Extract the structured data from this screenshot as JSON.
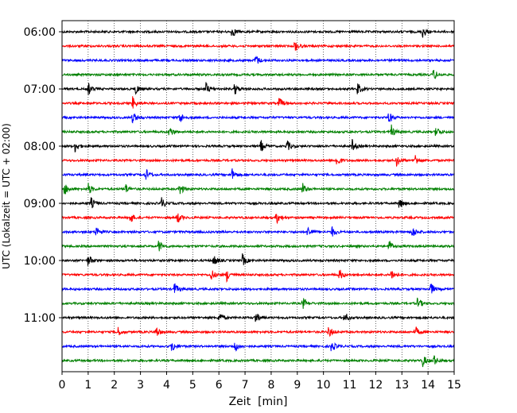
{
  "chart_data": {
    "type": "line",
    "title": "",
    "xlabel": "Zeit  [min]",
    "ylabel": "UTC (Lokalzeit = UTC + 02:00)",
    "xlim": [
      0,
      15
    ],
    "x_ticks": [
      "0",
      "1",
      "2",
      "3",
      "4",
      "5",
      "6",
      "7",
      "8",
      "9",
      "10",
      "11",
      "12",
      "13",
      "14",
      "15"
    ],
    "y_tick_labels": [
      "06:00",
      "07:00",
      "08:00",
      "09:00",
      "10:00",
      "11:00"
    ],
    "y_tick_rows": [
      0,
      4,
      8,
      12,
      16,
      20
    ],
    "grid": "vertical dotted",
    "trace_colors": [
      "#000000",
      "#ff0000",
      "#0000ff",
      "#008000"
    ],
    "traces": [
      {
        "start": "06:00",
        "events": [
          6.5,
          13.8
        ]
      },
      {
        "start": "06:15",
        "events": [
          8.9
        ]
      },
      {
        "start": "06:30",
        "events": [
          7.4
        ]
      },
      {
        "start": "06:45",
        "events": [
          14.2
        ]
      },
      {
        "start": "07:00",
        "events": [
          1.0,
          2.8,
          5.5,
          6.6,
          11.3
        ]
      },
      {
        "start": "07:15",
        "events": [
          2.7,
          8.3
        ]
      },
      {
        "start": "07:30",
        "events": [
          2.7,
          4.5,
          12.5
        ]
      },
      {
        "start": "07:45",
        "events": [
          4.1,
          12.6,
          14.3
        ]
      },
      {
        "start": "08:00",
        "events": [
          0.5,
          7.6,
          8.6,
          11.1
        ]
      },
      {
        "start": "08:15",
        "events": [
          10.5,
          12.8,
          13.5
        ]
      },
      {
        "start": "08:30",
        "events": [
          3.2,
          6.5
        ]
      },
      {
        "start": "08:45",
        "events": [
          0.1,
          1.0,
          2.4,
          4.5,
          9.2
        ]
      },
      {
        "start": "09:00",
        "events": [
          1.1,
          3.8,
          12.9
        ]
      },
      {
        "start": "09:15",
        "events": [
          2.6,
          4.4,
          8.2
        ]
      },
      {
        "start": "09:30",
        "events": [
          1.3,
          9.4,
          10.3,
          13.4
        ]
      },
      {
        "start": "09:45",
        "events": [
          3.7,
          12.5
        ]
      },
      {
        "start": "10:00",
        "events": [
          1.0,
          5.8,
          6.9
        ]
      },
      {
        "start": "10:15",
        "events": [
          5.7,
          6.3,
          10.6,
          12.6
        ]
      },
      {
        "start": "10:30",
        "events": [
          4.3,
          14.1
        ]
      },
      {
        "start": "10:45",
        "events": [
          9.2,
          13.6
        ]
      },
      {
        "start": "11:00",
        "events": [
          6.0,
          7.4,
          10.8
        ]
      },
      {
        "start": "11:15",
        "events": [
          2.1,
          3.6,
          10.2,
          13.5
        ]
      },
      {
        "start": "11:30",
        "events": [
          4.2,
          6.6,
          10.3
        ]
      },
      {
        "start": "11:45",
        "events": [
          13.8,
          14.2
        ]
      }
    ]
  }
}
